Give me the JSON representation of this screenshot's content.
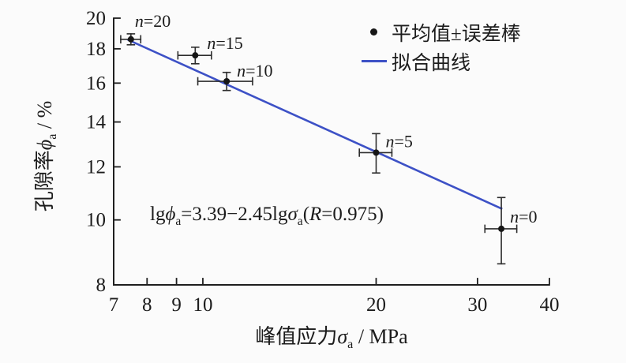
{
  "figure": {
    "background": "#fbfbfb",
    "axis_color": "#1f1f1f",
    "marker_color": "#161616",
    "errorbar_color": "#2d2d2d"
  },
  "chart_data": {
    "type": "scatter",
    "x_scale": "log",
    "y_scale": "log",
    "xlim": [
      7,
      40
    ],
    "ylim": [
      8,
      20
    ],
    "x_ticks": [
      "7",
      "8",
      "9",
      "10",
      "20",
      "30",
      "40"
    ],
    "y_ticks": [
      "8",
      "10",
      "12",
      "14",
      "16",
      "18",
      "20"
    ],
    "grid": false,
    "legend_position": "top-right",
    "xlabel_parts": {
      "prefix": "峰值应力",
      "symbol": "σ",
      "sub": "a",
      "suffix": " / MPa"
    },
    "ylabel_parts": {
      "prefix": "孔隙率",
      "symbol": "ϕ",
      "sub": "a",
      "suffix": " / %"
    },
    "series": [
      {
        "name": "平均值±误差棒",
        "type": "scatter_errorbar",
        "points": [
          {
            "label": "n=20",
            "x": 7.5,
            "y": 18.6,
            "err_x": 0.3,
            "err_y": 0.35,
            "label_dx": 5,
            "label_dy": -16
          },
          {
            "label": "n=15",
            "x": 9.7,
            "y": 17.6,
            "err_x": 0.65,
            "err_y": 0.5,
            "label_dx": 15,
            "label_dy": -8
          },
          {
            "label": "n=10",
            "x": 11.0,
            "y": 16.1,
            "err_x": 1.2,
            "err_y": 0.5,
            "label_dx": 13,
            "label_dy": -6
          },
          {
            "label": "n=5",
            "x": 20.0,
            "y": 12.6,
            "err_x": 1.3,
            "err_y": 0.85,
            "label_dx": 12,
            "label_dy": -7
          },
          {
            "label": "n=0",
            "x": 33.0,
            "y": 9.7,
            "err_x": 2.1,
            "err_y": 1.1,
            "label_dx": 11,
            "label_dy": -8
          }
        ]
      },
      {
        "name": "拟合曲线",
        "type": "line",
        "color": "#3d51c6",
        "from": {
          "x": 7.43,
          "y": 18.55
        },
        "to": {
          "x": 33.0,
          "y": 10.4
        }
      }
    ],
    "fit_R": "0.975"
  },
  "legend": {
    "items": [
      {
        "marker": "dot",
        "label": "平均值±误差棒"
      },
      {
        "marker": "line",
        "label": "拟合曲线"
      }
    ]
  },
  "equation": {
    "segments": [
      {
        "t": "lg"
      },
      {
        "t": "ϕ"
      },
      {
        "t": "a"
      },
      {
        "t": "=3.39−2.45lg"
      },
      {
        "t": "σ"
      },
      {
        "t": "a"
      },
      {
        "t": "("
      },
      {
        "t": "R"
      },
      {
        "t": "=0.975)"
      }
    ]
  }
}
